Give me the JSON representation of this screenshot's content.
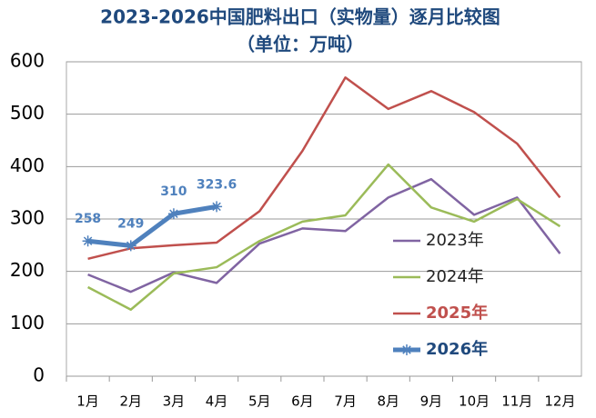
{
  "chart_data": {
    "type": "line",
    "title": "2023-2026中国肥料出口（实物量）逐月比较图",
    "subtitle": "（单位：万吨）",
    "categories": [
      "1月",
      "2月",
      "3月",
      "4月",
      "5月",
      "6月",
      "7月",
      "8月",
      "9月",
      "10月",
      "11月",
      "12月"
    ],
    "series": [
      {
        "name": "2023年",
        "color": "#8064a2",
        "values": [
          194,
          161,
          198,
          178,
          253,
          282,
          277,
          341,
          376,
          308,
          341,
          234
        ]
      },
      {
        "name": "2024年",
        "color": "#9bbb59",
        "values": [
          170,
          127,
          196,
          208,
          258,
          295,
          307,
          404,
          322,
          295,
          338,
          286
        ]
      },
      {
        "name": "2025年",
        "color": "#c0504d",
        "values": [
          224,
          244,
          250,
          255,
          315,
          430,
          570,
          510,
          544,
          504,
          444,
          341
        ]
      },
      {
        "name": "2026年",
        "color": "#4f81bd",
        "values": [
          258,
          249,
          310,
          323.6,
          null,
          null,
          null,
          null,
          null,
          null,
          null,
          null
        ]
      }
    ],
    "ylim": [
      0,
      600
    ],
    "yticks": [
      0,
      100,
      200,
      300,
      400,
      500,
      600
    ],
    "grid": true
  }
}
